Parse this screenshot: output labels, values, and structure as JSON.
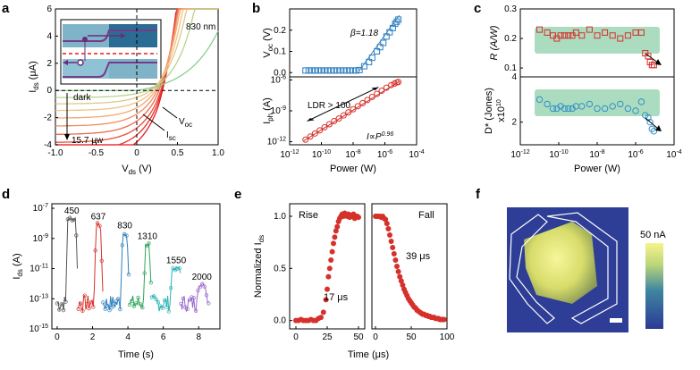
{
  "panels": {
    "a": "a",
    "b": "b",
    "c": "c",
    "d": "d",
    "e": "e",
    "f": "f"
  },
  "chart_data": [
    {
      "id": "a",
      "type": "line",
      "xlabel": "V_ds (V)",
      "ylabel": "I_ds (μA)",
      "xlim": [
        -1.0,
        1.0
      ],
      "ylim": [
        -4,
        6
      ],
      "xticks": [
        "-1.0",
        "-0.5",
        "0",
        "0.5",
        "1.0"
      ],
      "yticks": [
        "-4",
        "-2",
        "0",
        "2",
        "4",
        "6"
      ],
      "annotations": [
        "830 nm",
        "dark",
        "15.7 μw",
        "V_oc",
        "I_sc"
      ],
      "series": [
        {
          "isc": -3.7,
          "voc": 0.25,
          "color": "#e31a1c"
        },
        {
          "isc": -3.2,
          "voc": 0.24,
          "color": "#e5302a"
        },
        {
          "isc": -2.7,
          "voc": 0.23,
          "color": "#e94a38"
        },
        {
          "isc": -2.2,
          "voc": 0.21,
          "color": "#ec6a4a"
        },
        {
          "isc": -1.7,
          "voc": 0.19,
          "color": "#f08c5e"
        },
        {
          "isc": -1.25,
          "voc": 0.17,
          "color": "#f3a872"
        },
        {
          "isc": -0.85,
          "voc": 0.15,
          "color": "#f5c184"
        },
        {
          "isc": -0.5,
          "voc": 0.12,
          "color": "#dcc98a"
        },
        {
          "isc": -0.22,
          "voc": 0.09,
          "color": "#b9d28f"
        },
        {
          "isc": 0.0,
          "voc": 0.0,
          "color": "#8ccf8c"
        }
      ]
    },
    {
      "id": "b",
      "type": "scatter",
      "xlabel": "Power (W)",
      "xlim_log10": [
        -12,
        -4
      ],
      "xticks": [
        "10^-12",
        "10^-10",
        "10^-8",
        "10^-6",
        "10^-4"
      ],
      "top": {
        "ylabel": "V_oc (V)",
        "ylim": [
          -0.02,
          0.3
        ],
        "yticks": [
          "0.0",
          "0.1",
          "0.2"
        ],
        "annotation": "β=1.18",
        "color": "#2f7fbf",
        "log10_power": [
          -11.0,
          -10.8,
          -10.6,
          -10.4,
          -10.2,
          -10.0,
          -9.8,
          -9.6,
          -9.4,
          -9.2,
          -9.0,
          -8.8,
          -8.6,
          -8.4,
          -8.2,
          -8.0,
          -7.8,
          -7.6,
          -7.3,
          -7.0,
          -6.8,
          -6.5,
          -6.3,
          -6.1,
          -5.9,
          -5.7,
          -5.5,
          -5.35,
          -5.25,
          -5.15
        ],
        "values": [
          0.01,
          0.01,
          0.01,
          0.01,
          0.01,
          0.01,
          0.01,
          0.01,
          0.01,
          0.01,
          0.01,
          0.01,
          0.01,
          0.01,
          0.01,
          0.01,
          0.01,
          0.012,
          0.03,
          0.05,
          0.07,
          0.1,
          0.12,
          0.14,
          0.17,
          0.19,
          0.21,
          0.23,
          0.24,
          0.25
        ]
      },
      "bottom": {
        "ylabel": "I_ph (A)",
        "ylim_log10": [
          -12.3,
          -5.7
        ],
        "yticks": [
          "10^-12",
          "10^-9",
          "10^-6"
        ],
        "annotations": [
          "LDR > 100",
          "I∝P^0.96"
        ],
        "color": "#d6302b",
        "log10_power": [
          -11.0,
          -10.7,
          -10.4,
          -10.1,
          -9.8,
          -9.5,
          -9.2,
          -8.9,
          -8.6,
          -8.3,
          -8.0,
          -7.7,
          -7.4,
          -7.1,
          -6.8,
          -6.5,
          -6.2,
          -5.9,
          -5.6,
          -5.4,
          -5.25,
          -5.15
        ],
        "log10_current": [
          -11.8,
          -11.5,
          -11.2,
          -10.9,
          -10.6,
          -10.3,
          -10.0,
          -9.75,
          -9.45,
          -9.15,
          -8.85,
          -8.55,
          -8.25,
          -7.95,
          -7.65,
          -7.35,
          -7.05,
          -6.75,
          -6.5,
          -6.35,
          -6.25,
          -6.2
        ]
      }
    },
    {
      "id": "c",
      "type": "scatter",
      "xlabel": "Power (W)",
      "xlim_log10": [
        -12,
        -4
      ],
      "xticks": [
        "10^-12",
        "10^-10",
        "10^-8",
        "10^-6",
        "10^-4"
      ],
      "top": {
        "ylabel": "R (A/W)",
        "ylim": [
          0.07,
          0.3
        ],
        "yticks": [
          "0.1",
          "0.2",
          "0.3"
        ],
        "color": "#d6302b",
        "log10_power": [
          -11.0,
          -10.6,
          -10.3,
          -10.1,
          -9.9,
          -9.7,
          -9.5,
          -9.3,
          -9.1,
          -8.8,
          -8.4,
          -8.0,
          -7.6,
          -7.2,
          -6.8,
          -6.4,
          -6.0,
          -5.7,
          -5.5,
          -5.35,
          -5.25,
          -5.15,
          -5.05
        ],
        "values": [
          0.23,
          0.22,
          0.21,
          0.2,
          0.21,
          0.21,
          0.21,
          0.21,
          0.22,
          0.21,
          0.23,
          0.21,
          0.22,
          0.21,
          0.2,
          0.21,
          0.22,
          0.22,
          0.15,
          0.14,
          0.12,
          0.11,
          0.11
        ]
      },
      "bottom": {
        "ylabel": "D* (Jones) x10^10",
        "ylim": [
          1.0,
          4.0
        ],
        "yticks": [
          "2",
          "4"
        ],
        "color": "#2f8fc8",
        "log10_power": [
          -11.0,
          -10.6,
          -10.3,
          -10.1,
          -9.9,
          -9.7,
          -9.5,
          -9.3,
          -9.1,
          -8.8,
          -8.4,
          -8.0,
          -7.6,
          -7.2,
          -6.8,
          -6.4,
          -6.0,
          -5.7,
          -5.5,
          -5.35,
          -5.25,
          -5.15,
          -5.05
        ],
        "values": [
          3.0,
          2.8,
          2.6,
          2.6,
          2.7,
          2.6,
          2.6,
          2.6,
          2.7,
          2.7,
          2.8,
          2.6,
          2.6,
          2.7,
          2.8,
          2.6,
          2.5,
          2.9,
          2.3,
          2.2,
          2.0,
          1.7,
          1.6
        ]
      }
    },
    {
      "id": "d",
      "type": "line",
      "xlabel": "Time (s)",
      "ylabel": "I_ds (A)",
      "xlim": [
        -0.3,
        9.2
      ],
      "ylim_log10": [
        -15,
        -6.7
      ],
      "xticks": [
        "0",
        "2",
        "4",
        "6",
        "8"
      ],
      "yticks": [
        "10^-7",
        "10^-9",
        "10^-11",
        "10^-13",
        "10^-15"
      ],
      "series": [
        {
          "name": "450",
          "color": "#555555",
          "t_on": 0.6,
          "t_off": 1.05,
          "peak": -7.7
        },
        {
          "name": "637",
          "color": "#d6302b",
          "t_on": 2.2,
          "t_off": 2.45,
          "peak": -8.1
        },
        {
          "name": "830",
          "color": "#2f7fbf",
          "t_on": 3.7,
          "t_off": 3.95,
          "peak": -8.7
        },
        {
          "name": "1310",
          "color": "#2ea45a",
          "t_on": 5.0,
          "t_off": 5.2,
          "peak": -9.4
        },
        {
          "name": "1550",
          "color": "#2ab2b2",
          "t_on": 6.5,
          "t_off": 6.95,
          "peak": -11.0
        },
        {
          "name": "2000",
          "color": "#9966cc",
          "t_on": 8.0,
          "t_off": 8.35,
          "peak": -12.1
        }
      ]
    },
    {
      "id": "e",
      "type": "scatter",
      "ylabel": "Normalized I_ds",
      "xlabel": "Time (μs)",
      "yticks": [
        "0.0",
        "0.5",
        "1.0"
      ],
      "color": "#d6302b",
      "rise": {
        "label": "Rise",
        "time_label": "17 μs",
        "xlim": [
          -5,
          55
        ],
        "xticks": [
          "0",
          "25",
          "50"
        ],
        "t": [
          0,
          2,
          4,
          6,
          8,
          10,
          12,
          14,
          16,
          18,
          20,
          22,
          24,
          25,
          26,
          27,
          28,
          29,
          30,
          31,
          32,
          33,
          34,
          35,
          36,
          37,
          38,
          39,
          40,
          41,
          42,
          43,
          44,
          45,
          46,
          47,
          48,
          49,
          50
        ],
        "y": [
          0.0,
          0.0,
          0.01,
          0.0,
          0.0,
          0.0,
          0.01,
          0.0,
          0.0,
          0.02,
          0.03,
          0.08,
          0.2,
          0.3,
          0.42,
          0.5,
          0.58,
          0.66,
          0.74,
          0.8,
          0.86,
          0.9,
          0.95,
          0.98,
          1.0,
          1.02,
          1.0,
          1.03,
          1.01,
          1.0,
          1.02,
          0.99,
          1.01,
          1.0,
          1.02,
          0.98,
          1.0,
          1.0,
          0.99
        ]
      },
      "fall": {
        "label": "Fall",
        "time_label": "39 μs",
        "xlim": [
          -5,
          100
        ],
        "xticks": [
          "0",
          "50",
          "100"
        ],
        "t": [
          0,
          2,
          4,
          6,
          8,
          10,
          12,
          14,
          16,
          18,
          20,
          22,
          24,
          26,
          28,
          30,
          32,
          34,
          36,
          38,
          40,
          42,
          44,
          46,
          48,
          50,
          52,
          54,
          56,
          58,
          60,
          62,
          64,
          66,
          68,
          70,
          72,
          74,
          76,
          78,
          80,
          82,
          84,
          86,
          88,
          90,
          92,
          94,
          96
        ],
        "y": [
          1.0,
          1.0,
          1.0,
          1.0,
          0.99,
          1.0,
          0.98,
          0.97,
          0.93,
          0.88,
          0.82,
          0.76,
          0.7,
          0.64,
          0.58,
          0.52,
          0.47,
          0.42,
          0.38,
          0.34,
          0.3,
          0.27,
          0.24,
          0.21,
          0.19,
          0.17,
          0.15,
          0.13,
          0.12,
          0.1,
          0.09,
          0.08,
          0.07,
          0.06,
          0.06,
          0.05,
          0.05,
          0.04,
          0.04,
          0.03,
          0.03,
          0.03,
          0.02,
          0.02,
          0.02,
          0.01,
          0.01,
          0.01,
          0.01
        ]
      }
    },
    {
      "id": "f",
      "type": "heatmap",
      "colorbar_label": "50 nA",
      "colors": {
        "low": "#2f3f98",
        "mid": "#3d7a9a",
        "high": "#f2f07a"
      }
    }
  ]
}
